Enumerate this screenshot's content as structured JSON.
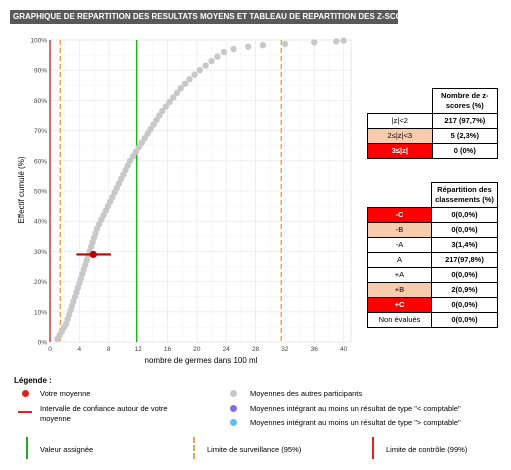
{
  "header": {
    "title": "GRAPHIQUE DE REPARTITION DES RESULTATS MOYENS ET TABLEAU DE REPARTITION DES Z-SCORES"
  },
  "chart_data": {
    "type": "scatter",
    "xlabel": "nombre de germes dans 100 ml",
    "ylabel": "Effectif cumulé (%)",
    "xlim": [
      0,
      41
    ],
    "ylim": [
      0,
      100
    ],
    "x_ticks": [
      "0",
      "4",
      "8",
      "12",
      "16",
      "20",
      "24",
      "28",
      "32",
      "36",
      "40"
    ],
    "y_ticks": [
      "0%",
      "10%",
      "20%",
      "30%",
      "40%",
      "50%",
      "60%",
      "70%",
      "80%",
      "90%",
      "100%"
    ],
    "grid": true,
    "series": [
      {
        "name": "Moyennes des autres participants",
        "color": "#c8c8c8",
        "points": [
          [
            1,
            1
          ],
          [
            1.3,
            2.2
          ],
          [
            1.6,
            3.5
          ],
          [
            1.9,
            4.8
          ],
          [
            2.2,
            6
          ],
          [
            2.4,
            7.5
          ],
          [
            2.6,
            9
          ],
          [
            2.8,
            10.5
          ],
          [
            3,
            12
          ],
          [
            3.2,
            13.5
          ],
          [
            3.4,
            15
          ],
          [
            3.6,
            16.5
          ],
          [
            3.8,
            18
          ],
          [
            4,
            19.5
          ],
          [
            4.2,
            21
          ],
          [
            4.4,
            22.5
          ],
          [
            4.6,
            24
          ],
          [
            4.8,
            25.5
          ],
          [
            5,
            27
          ],
          [
            5.2,
            28.5
          ],
          [
            5.4,
            30
          ],
          [
            5.6,
            31.5
          ],
          [
            5.8,
            33
          ],
          [
            6,
            34.5
          ],
          [
            6.2,
            36
          ],
          [
            6.4,
            37.5
          ],
          [
            6.7,
            39
          ],
          [
            7,
            40.5
          ],
          [
            7.3,
            42
          ],
          [
            7.6,
            43.5
          ],
          [
            7.9,
            45
          ],
          [
            8.2,
            46.5
          ],
          [
            8.5,
            48
          ],
          [
            8.8,
            49.5
          ],
          [
            9.1,
            51
          ],
          [
            9.4,
            52.5
          ],
          [
            9.7,
            54
          ],
          [
            10,
            55.5
          ],
          [
            10.3,
            57
          ],
          [
            10.6,
            58.5
          ],
          [
            10.9,
            60
          ],
          [
            11.3,
            61.5
          ],
          [
            11.7,
            63
          ],
          [
            12.1,
            64.5
          ],
          [
            12.5,
            66
          ],
          [
            12.9,
            67.5
          ],
          [
            13.3,
            69
          ],
          [
            13.7,
            70.5
          ],
          [
            14.1,
            72
          ],
          [
            14.5,
            73.5
          ],
          [
            14.9,
            75
          ],
          [
            15.3,
            76.5
          ],
          [
            15.8,
            78
          ],
          [
            16.3,
            79.5
          ],
          [
            16.8,
            81
          ],
          [
            17.3,
            82.5
          ],
          [
            17.8,
            84
          ],
          [
            18.4,
            85.5
          ],
          [
            19,
            87
          ],
          [
            19.7,
            88.5
          ],
          [
            20.4,
            90
          ],
          [
            21.2,
            91.5
          ],
          [
            22,
            93
          ],
          [
            22.8,
            94.5
          ],
          [
            23.7,
            96
          ],
          [
            25,
            97
          ],
          [
            27,
            97.8
          ],
          [
            29,
            98.3
          ],
          [
            32,
            98.7
          ],
          [
            36,
            99.2
          ],
          [
            39,
            99.5
          ],
          [
            40,
            99.8
          ]
        ]
      },
      {
        "name": "Votre moyenne",
        "color": "#c00000",
        "points": [
          [
            5.9,
            29
          ]
        ],
        "ci": [
          3.6,
          8.3
        ]
      }
    ],
    "vlines": [
      {
        "x": 0,
        "color": "#e02020",
        "style": "solid"
      },
      {
        "x": 1.4,
        "color": "#f0a050",
        "style": "dashed"
      },
      {
        "x": 11.8,
        "color": "#22aa22",
        "style": "solid"
      },
      {
        "x": 31.5,
        "color": "#f0a050",
        "style": "dashed"
      }
    ]
  },
  "table_zscores": {
    "header": "Nombre de z-scores (%)",
    "rows": [
      {
        "label": "|z|<2",
        "value": "217 (97,7%)",
        "style": ""
      },
      {
        "label": "2≤|z|<3",
        "value": "5 (2,3%)",
        "style": "peach"
      },
      {
        "label": "3≤|z|",
        "value": "0 (0%)",
        "style": "red"
      }
    ]
  },
  "table_classements": {
    "header": "Répartition des classements (%)",
    "rows": [
      {
        "label": "-C",
        "value": "0(0,0%)",
        "style": "red"
      },
      {
        "label": "-B",
        "value": "0(0,0%)",
        "style": "peach"
      },
      {
        "label": "-A",
        "value": "3(1,4%)",
        "style": ""
      },
      {
        "label": "A",
        "value": "217(97,8%)",
        "style": ""
      },
      {
        "label": "+A",
        "value": "0(0,0%)",
        "style": ""
      },
      {
        "label": "+B",
        "value": "2(0,9%)",
        "style": "peach"
      },
      {
        "label": "+C",
        "value": "0(0,0%)",
        "style": "red"
      },
      {
        "label": "Non évalués",
        "value": "0(0,0%)",
        "style": ""
      }
    ]
  },
  "legend": {
    "title": "Légende :",
    "votre_moyenne": "Votre moyenne",
    "intervalle": "Intervalle de confiance autour de votre moyenne",
    "autres": "Moyennes des autres participants",
    "comptable_lt": "Moyennes intégrant au moins un résultat de type \"< comptable\"",
    "comptable_gt": "Moyennes intégrant au moins un résultat de type \"> comptable\"",
    "valeur_assignee": "Valeur assignée",
    "limite_surveillance": "Limite de surveillance (95%)",
    "limite_controle": "Limite de contrôle (99%)",
    "colors": {
      "votre": "#e02020",
      "autres": "#c8c8c8",
      "lt": "#8a6ad8",
      "gt": "#5bc0eb",
      "assignee": "#22aa22",
      "surveillance": "#f0a050",
      "controle": "#e02020"
    }
  }
}
